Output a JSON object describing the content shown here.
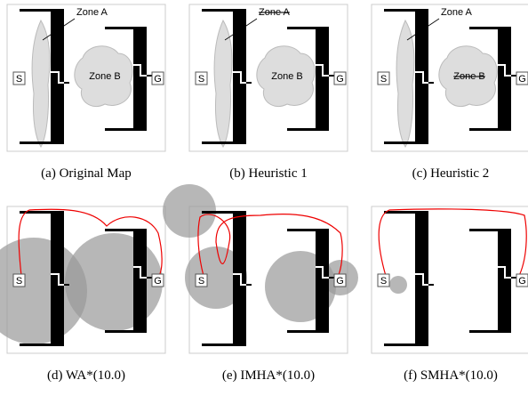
{
  "panels": [
    {
      "caption": "(a) Original Map",
      "zone_a": "Zone A",
      "zone_b": "Zone B",
      "start": "S",
      "goal": "G"
    },
    {
      "caption": "(b) Heuristic 1",
      "zone_a": "Zone A",
      "zone_b": "Zone B",
      "start": "S",
      "goal": "G"
    },
    {
      "caption": "(c) Heuristic 2",
      "zone_a": "Zone A",
      "zone_b": "Zone B",
      "start": "S",
      "goal": "G"
    },
    {
      "caption": "(d) WA*(10.0)",
      "start": "S",
      "goal": "G"
    },
    {
      "caption": "(e) IMHA*(10.0)",
      "start": "S",
      "goal": "G"
    },
    {
      "caption": "(f) SMHA*(10.0)",
      "start": "S",
      "goal": "G"
    }
  ]
}
